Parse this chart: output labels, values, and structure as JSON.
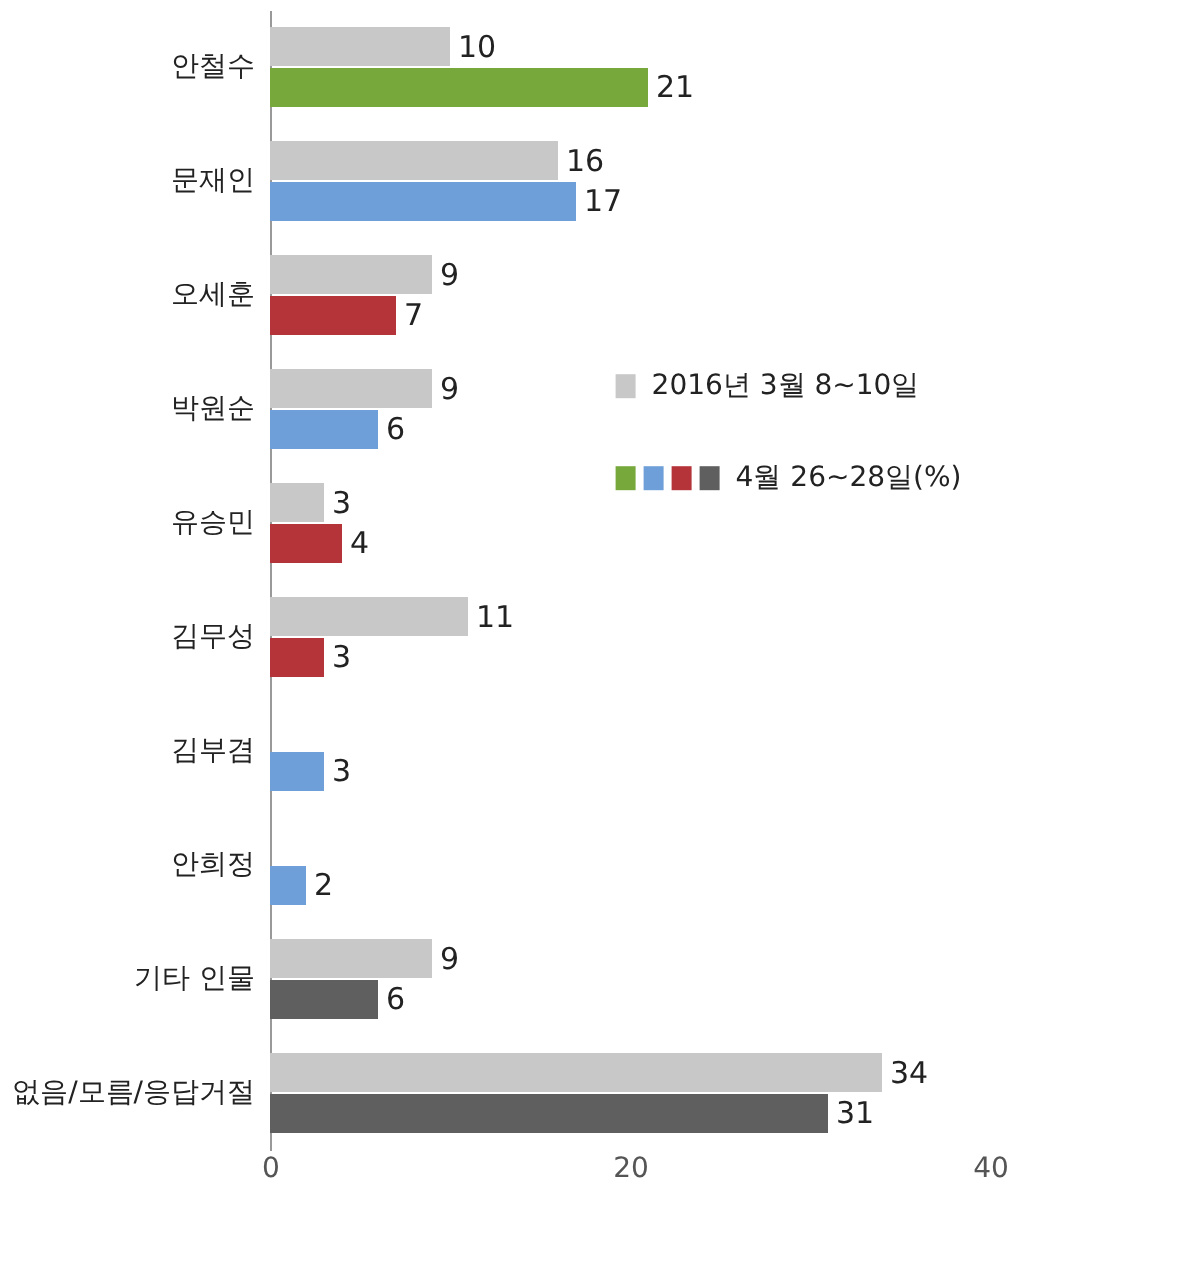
{
  "chart_data": {
    "type": "bar",
    "orientation": "horizontal",
    "categories": [
      "안철수",
      "문재인",
      "오세훈",
      "박원순",
      "유승민",
      "김무성",
      "김부겸",
      "안희정",
      "기타 인물",
      "없음/모름/응답거절"
    ],
    "series": [
      {
        "name": "2016년 3월 8~10일",
        "color": "#c8c8c8",
        "values": [
          10,
          16,
          9,
          9,
          3,
          11,
          null,
          null,
          9,
          34
        ]
      },
      {
        "name": "4월 26~28일(%)",
        "colors": [
          "#77a83c",
          "#6f9fd8",
          "#b5343a",
          "#6f9fd8",
          "#b5343a",
          "#b5343a",
          "#6f9fd8",
          "#6f9fd8",
          "#5f5f5f",
          "#5f5f5f"
        ],
        "values": [
          21,
          17,
          7,
          6,
          4,
          3,
          3,
          2,
          6,
          31
        ]
      }
    ],
    "xlim": [
      0,
      40
    ],
    "xticks": [
      0,
      20,
      40
    ],
    "grid": false,
    "legend": "right",
    "data_labels": true
  }
}
